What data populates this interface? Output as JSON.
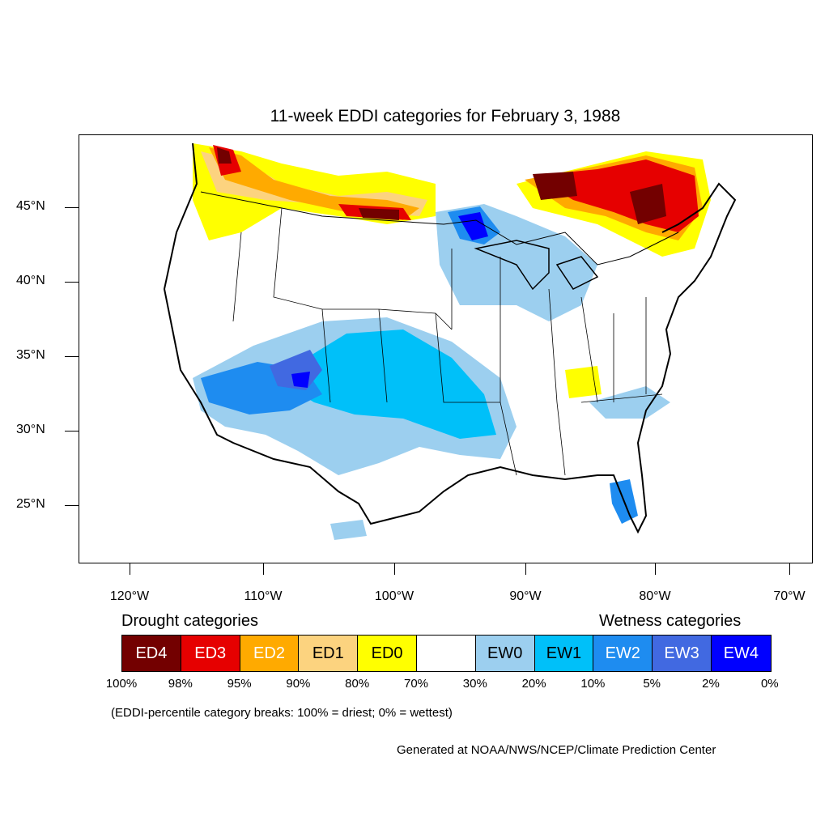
{
  "title": "11-week EDDI categories for February 3, 1988",
  "lat_labels": [
    "45°N",
    "40°N",
    "35°N",
    "30°N",
    "25°N"
  ],
  "lon_labels": [
    "120°W",
    "110°W",
    "100°W",
    "90°W",
    "80°W",
    "70°W"
  ],
  "legend": {
    "drought_heading": "Drought categories",
    "wetness_heading": "Wetness categories",
    "categories": [
      {
        "label": "ED4",
        "color": "#730000",
        "text_color": "#ffffff"
      },
      {
        "label": "ED3",
        "color": "#e60000",
        "text_color": "#ffffff"
      },
      {
        "label": "ED2",
        "color": "#ffaa00",
        "text_color": "#ffffff"
      },
      {
        "label": "ED1",
        "color": "#fcd37f",
        "text_color": "#000000"
      },
      {
        "label": "ED0",
        "color": "#ffff00",
        "text_color": "#000000"
      },
      {
        "label": "",
        "color": "#ffffff",
        "text_color": "#000000"
      },
      {
        "label": "EW0",
        "color": "#9ccfef",
        "text_color": "#000000"
      },
      {
        "label": "EW1",
        "color": "#00c0f9",
        "text_color": "#000000"
      },
      {
        "label": "EW2",
        "color": "#1e8cf0",
        "text_color": "#ffffff"
      },
      {
        "label": "EW3",
        "color": "#4169e1",
        "text_color": "#ffffff"
      },
      {
        "label": "EW4",
        "color": "#0000ff",
        "text_color": "#ffffff"
      }
    ],
    "percent_breaks": [
      "100%",
      "98%",
      "95%",
      "90%",
      "80%",
      "70%",
      "30%",
      "20%",
      "10%",
      "5%",
      "2%",
      "0%"
    ]
  },
  "note": "(EDDI-percentile category breaks: 100% = driest; 0% = wettest)",
  "credit": "Generated at NOAA/NWS/NCEP/Climate Prediction Center"
}
